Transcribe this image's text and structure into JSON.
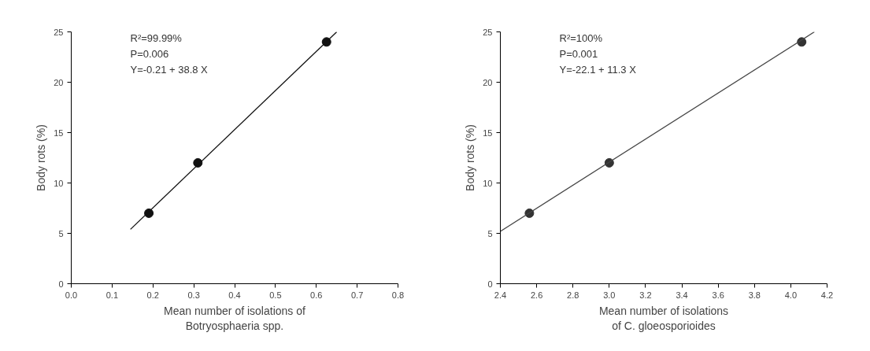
{
  "chart_data": [
    {
      "type": "scatter",
      "xlabel": "Mean number of isolations of\nBotryosphaeria spp.",
      "ylabel": "Body rots (%)",
      "annotations": [
        "R²=99.99%",
        "P=0.006",
        "Y=-0.21 + 38.8 X"
      ],
      "series": [
        {
          "x": [
            0.19,
            0.31,
            0.625
          ],
          "values": [
            7.0,
            12.0,
            24.0
          ],
          "color": "#111111"
        },
        {
          "type": "line",
          "marker": "none",
          "x": [
            0.145,
            0.65
          ],
          "values": [
            5.4,
            25.0
          ],
          "color": "#111111"
        }
      ],
      "marker": "circle",
      "line_style": "solid",
      "grid": false,
      "xlim": [
        0,
        0.8
      ],
      "xticks": [
        {
          "value": 0,
          "label": "0.0"
        },
        0.1,
        0.2,
        0.3,
        0.4,
        0.5,
        0.6,
        0.7,
        0.8
      ],
      "ylim": [
        0,
        25
      ],
      "yticks": [
        0,
        5,
        10,
        15,
        20,
        25
      ]
    },
    {
      "type": "scatter",
      "xlabel": "Mean number of isolations\nof C. gloeosporioides",
      "ylabel": "Body rots (%)",
      "annotations": [
        "R²=100%",
        "P=0.001",
        "Y=-22.1 + 11.3 X"
      ],
      "series": [
        {
          "x": [
            2.56,
            3.0,
            4.06
          ],
          "values": [
            7.0,
            12.0,
            24.0
          ],
          "color": "#333333"
        },
        {
          "type": "line",
          "marker": "none",
          "x": [
            2.4,
            4.13
          ],
          "values": [
            5.2,
            25.0
          ],
          "color": "#444444"
        }
      ],
      "marker": "circle",
      "line_style": "solid",
      "grid": false,
      "xlim": [
        2.4,
        4.2
      ],
      "xticks": [
        2.4,
        2.6,
        2.8,
        {
          "value": 3.0,
          "label": "3.0"
        },
        3.2,
        3.4,
        3.6,
        3.8,
        {
          "value": 4.0,
          "label": "4.0"
        },
        4.2
      ],
      "ylim": [
        0,
        25
      ],
      "yticks": [
        0,
        5,
        10,
        15,
        20,
        25
      ]
    }
  ]
}
